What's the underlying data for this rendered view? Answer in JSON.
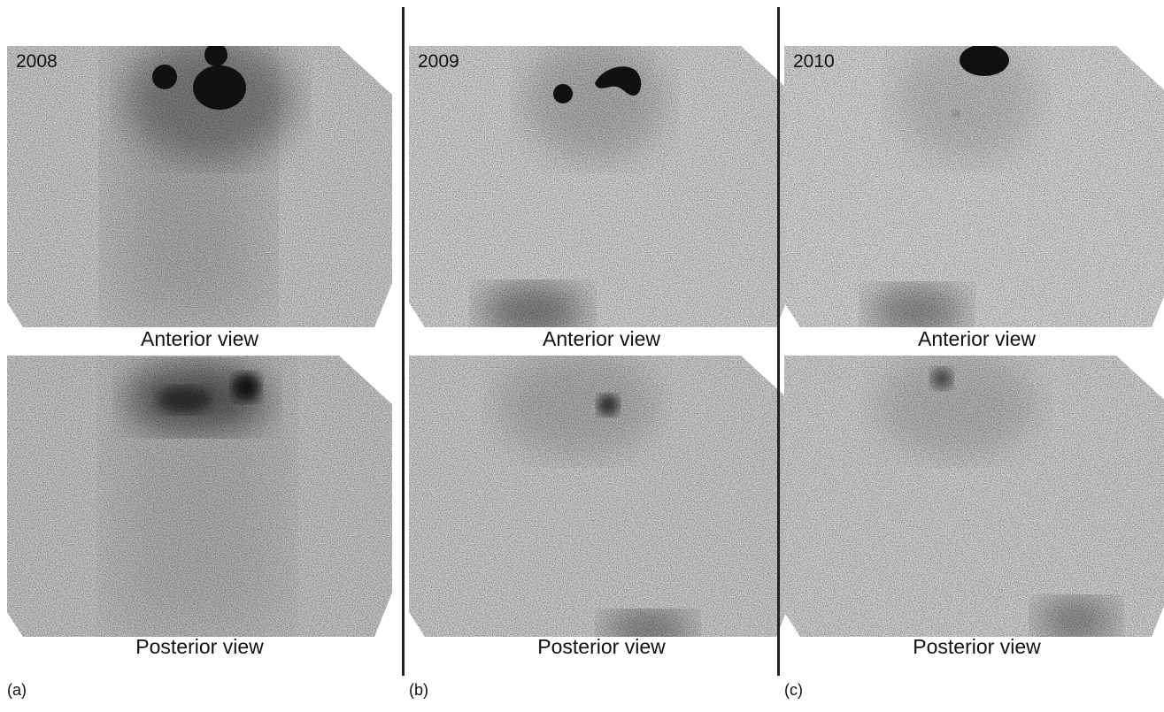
{
  "panels": [
    {
      "id": "a",
      "letter": "(a)",
      "year": "2008",
      "anterior_label": "Anterior view",
      "posterior_label": "Posterior view"
    },
    {
      "id": "b",
      "letter": "(b)",
      "year": "2009",
      "anterior_label": "Anterior view",
      "posterior_label": "Posterior view"
    },
    {
      "id": "c",
      "letter": "(c)",
      "year": "2010",
      "anterior_label": "Anterior view",
      "posterior_label": "Posterior view"
    }
  ],
  "colors": {
    "background": "#ffffff",
    "divider": "#222222",
    "uptake": "#141414"
  }
}
